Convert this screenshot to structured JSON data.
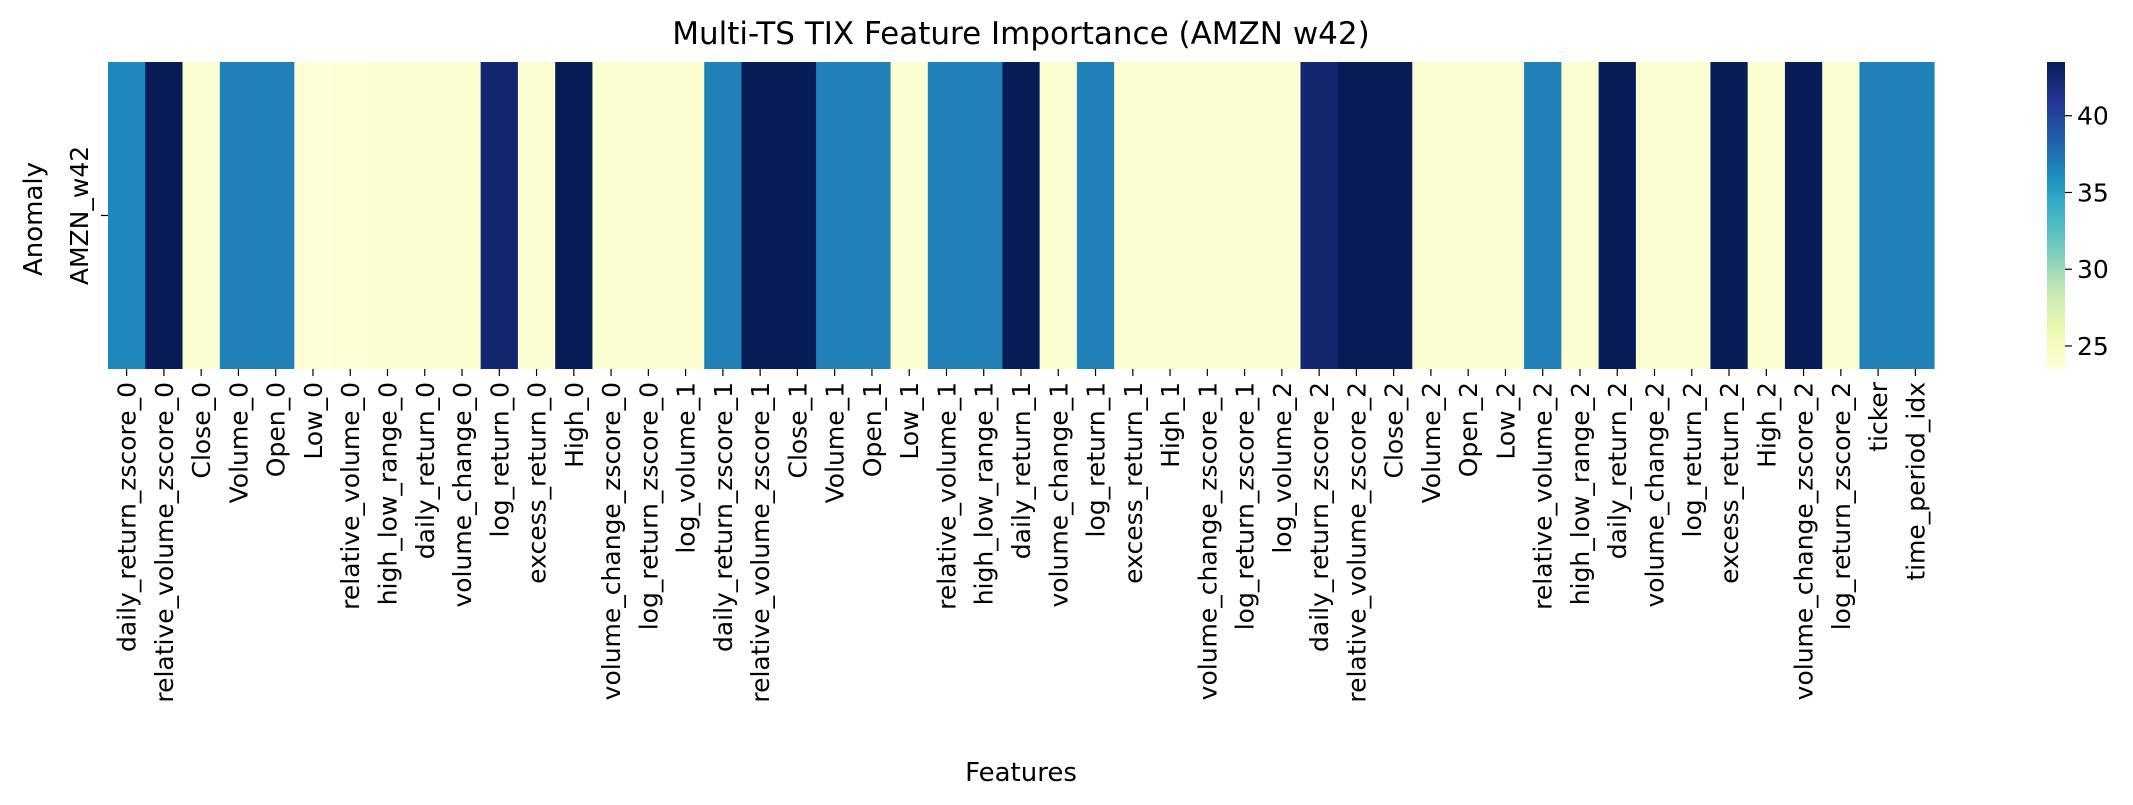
{
  "chart_data": {
    "type": "heatmap",
    "title": "Multi-TS TIX Feature Importance (AMZN w42)",
    "xlabel": "Features",
    "ylabel": "Anomaly",
    "rows": [
      "AMZN_w42"
    ],
    "columns": [
      "daily_return_zscore_0",
      "relative_volume_zscore_0",
      "Close_0",
      "Volume_0",
      "Open_0",
      "Low_0",
      "relative_volume_0",
      "high_low_range_0",
      "daily_return_0",
      "volume_change_0",
      "log_return_0",
      "excess_return_0",
      "High_0",
      "volume_change_zscore_0",
      "log_return_zscore_0",
      "log_volume_1",
      "daily_return_zscore_1",
      "relative_volume_zscore_1",
      "Close_1",
      "Volume_1",
      "Open_1",
      "Low_1",
      "relative_volume_1",
      "high_low_range_1",
      "daily_return_1",
      "volume_change_1",
      "log_return_1",
      "excess_return_1",
      "High_1",
      "volume_change_zscore_1",
      "log_return_zscore_1",
      "log_volume_2",
      "daily_return_zscore_2",
      "relative_volume_zscore_2",
      "Close_2",
      "Volume_2",
      "Open_2",
      "Low_2",
      "relative_volume_2",
      "high_low_range_2",
      "daily_return_2",
      "volume_change_2",
      "log_return_2",
      "excess_return_2",
      "High_2",
      "volume_change_zscore_2",
      "log_return_zscore_2",
      "ticker",
      "time_period_idx"
    ],
    "values": [
      [
        36.5,
        43.5,
        24.0,
        36.8,
        36.8,
        23.6,
        23.9,
        24.0,
        24.0,
        24.0,
        42.5,
        24.0,
        43.5,
        24.0,
        24.0,
        24.0,
        36.8,
        43.5,
        43.5,
        36.8,
        36.8,
        24.0,
        36.8,
        36.8,
        43.5,
        24.0,
        36.8,
        24.0,
        24.0,
        24.0,
        24.0,
        24.0,
        42.5,
        43.5,
        43.5,
        24.0,
        24.0,
        24.0,
        36.8,
        24.0,
        43.5,
        24.0,
        24.0,
        43.5,
        24.0,
        43.5,
        24.0,
        36.8,
        36.8
      ]
    ],
    "colormap": "YlGnBu",
    "colorbar": {
      "range": [
        23.5,
        43.5
      ],
      "ticks": [
        25,
        30,
        35,
        40
      ]
    }
  }
}
